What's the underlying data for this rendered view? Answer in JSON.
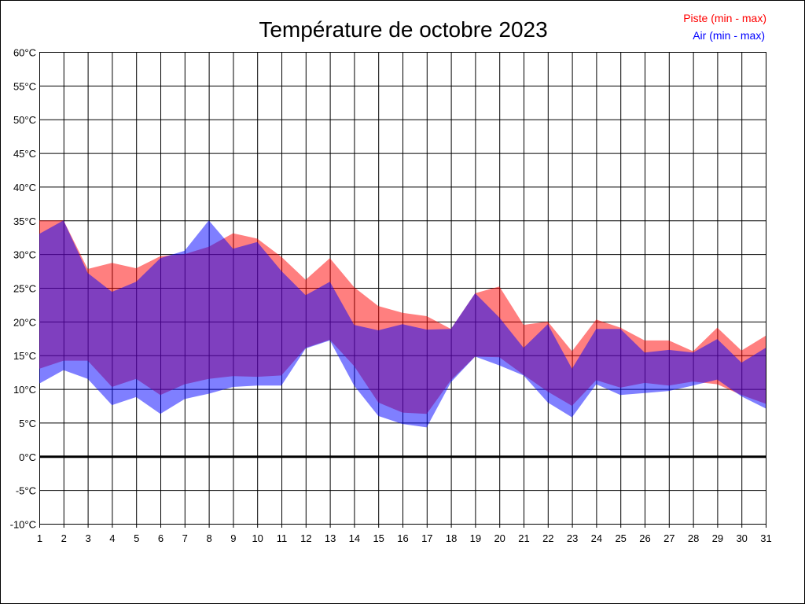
{
  "chart_data": {
    "type": "area",
    "title": "Température de octobre 2023",
    "xlabel": "",
    "ylabel": "",
    "ylim": [
      -10,
      60
    ],
    "y_tick_step": 5,
    "y_unit": "°C",
    "grid": true,
    "legend_position": "top-right",
    "x": [
      1,
      2,
      3,
      4,
      5,
      6,
      7,
      8,
      9,
      10,
      11,
      12,
      13,
      14,
      15,
      16,
      17,
      18,
      19,
      20,
      21,
      22,
      23,
      24,
      25,
      26,
      27,
      28,
      29,
      30,
      31
    ],
    "series": [
      {
        "name": "Piste (min - max)",
        "color": "#ff0000",
        "min": [
          13.0,
          14.2,
          14.2,
          10.3,
          11.5,
          9.1,
          10.7,
          11.5,
          11.9,
          11.8,
          12.0,
          16.1,
          17.3,
          13.4,
          8.0,
          6.5,
          6.3,
          11.3,
          14.8,
          14.7,
          12.1,
          9.6,
          7.5,
          11.3,
          10.2,
          10.9,
          10.5,
          11.1,
          10.7,
          9.1,
          7.8
        ],
        "max": [
          35.0,
          35.0,
          27.8,
          28.7,
          27.9,
          29.7,
          30.0,
          31.1,
          33.1,
          32.3,
          29.6,
          26.2,
          29.4,
          25.1,
          22.3,
          21.3,
          20.8,
          18.9,
          24.2,
          25.2,
          19.5,
          20.0,
          15.6,
          20.3,
          19.1,
          17.2,
          17.2,
          15.6,
          19.1,
          15.7,
          17.9
        ]
      },
      {
        "name": "Air (min - max)",
        "color": "#0000ff",
        "min": [
          10.8,
          12.8,
          11.5,
          7.6,
          8.8,
          6.3,
          8.5,
          9.3,
          10.3,
          10.5,
          10.5,
          16.0,
          17.2,
          10.5,
          6.0,
          4.8,
          4.3,
          11.0,
          14.8,
          13.5,
          12.0,
          8.0,
          5.8,
          10.7,
          9.1,
          9.4,
          9.7,
          10.5,
          11.4,
          8.9,
          7.1
        ],
        "max": [
          33.0,
          35.0,
          27.2,
          24.4,
          25.9,
          29.4,
          30.5,
          35.0,
          30.8,
          31.8,
          27.5,
          23.9,
          25.9,
          19.5,
          18.7,
          19.6,
          18.8,
          18.9,
          24.2,
          20.6,
          16.1,
          19.6,
          13.0,
          18.9,
          18.9,
          15.4,
          15.8,
          15.4,
          17.4,
          13.9,
          16.1
        ]
      }
    ]
  }
}
